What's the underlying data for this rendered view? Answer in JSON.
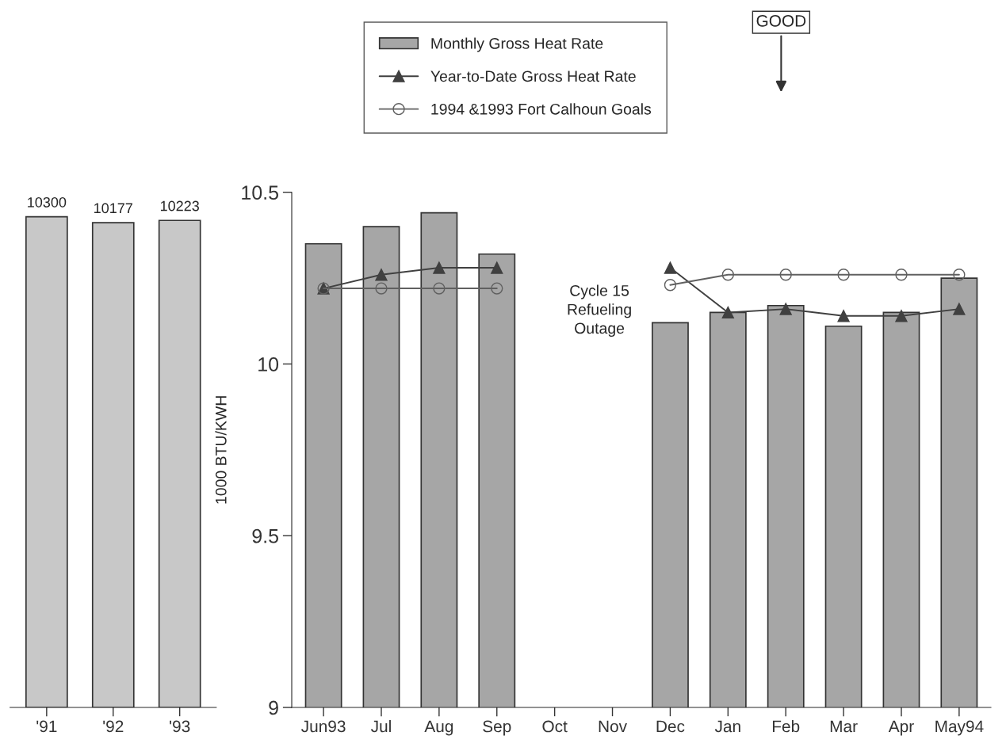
{
  "chart_data": [
    {
      "type": "bar",
      "categories": [
        "'91",
        "'92",
        "'93"
      ],
      "values": [
        10300,
        10177,
        10223
      ],
      "color": "#c8c8c8",
      "data_labels": true,
      "tick_labels": "x"
    },
    {
      "type": "bar",
      "ylabel": "1000 BTU/KWH",
      "categories": [
        "Jun93",
        "Jul",
        "Aug",
        "Sep",
        "Oct",
        "Nov",
        "Dec",
        "Jan",
        "Feb",
        "Mar",
        "Apr",
        "May94"
      ],
      "series": [
        {
          "name": "Monthly Gross Heat Rate",
          "type": "bar",
          "color": "#a6a6a6",
          "values": [
            10.35,
            10.4,
            10.44,
            10.32,
            null,
            null,
            10.12,
            10.15,
            10.17,
            10.11,
            10.15,
            10.25
          ]
        },
        {
          "name": "Year-to-Date Gross Heat Rate",
          "type": "line",
          "color": "#404040",
          "marker": "triangle",
          "values": [
            10.22,
            10.26,
            10.28,
            10.28,
            null,
            null,
            10.28,
            10.15,
            10.16,
            10.14,
            10.14,
            10.16
          ]
        },
        {
          "name": "1994 &1993 Fort Calhoun Goals",
          "type": "line",
          "color": "#606060",
          "marker": "circle",
          "values": [
            10.22,
            10.22,
            10.22,
            10.22,
            null,
            null,
            10.23,
            10.26,
            10.26,
            10.26,
            10.26,
            10.26
          ]
        }
      ],
      "ylim": [
        9,
        10.5
      ],
      "yticks": [
        9,
        9.5,
        10,
        10.5
      ],
      "legend": "top",
      "grid": false,
      "annotations": [
        "Cycle 15\nRefueling\nOutage",
        "GOOD"
      ]
    }
  ]
}
